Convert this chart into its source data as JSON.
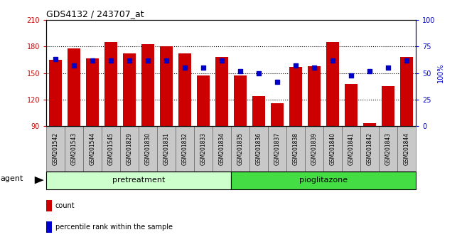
{
  "title": "GDS4132 / 243707_at",
  "samples": [
    "GSM201542",
    "GSM201543",
    "GSM201544",
    "GSM201545",
    "GSM201829",
    "GSM201830",
    "GSM201831",
    "GSM201832",
    "GSM201833",
    "GSM201834",
    "GSM201835",
    "GSM201836",
    "GSM201837",
    "GSM201838",
    "GSM201839",
    "GSM201840",
    "GSM201841",
    "GSM201842",
    "GSM201843",
    "GSM201844"
  ],
  "counts": [
    165,
    178,
    167,
    185,
    172,
    183,
    180,
    172,
    147,
    168,
    147,
    124,
    116,
    157,
    158,
    185,
    138,
    93,
    135,
    168
  ],
  "percentile_ranks": [
    63,
    57,
    62,
    62,
    62,
    62,
    62,
    55,
    55,
    62,
    52,
    50,
    42,
    57,
    55,
    62,
    48,
    52,
    55,
    62
  ],
  "groups": [
    {
      "name": "pretreatment",
      "start": 0,
      "end": 9,
      "color": "#CCFFCC"
    },
    {
      "name": "pioglitazone",
      "start": 10,
      "end": 19,
      "color": "#44DD44"
    }
  ],
  "ylim_left": [
    90,
    210
  ],
  "ylim_right": [
    0,
    100
  ],
  "yticks_left": [
    90,
    120,
    150,
    180,
    210
  ],
  "yticks_right": [
    0,
    25,
    50,
    75,
    100
  ],
  "bar_color": "#CC0000",
  "dot_color": "#0000CC",
  "cell_bg": "#C8C8C8",
  "cell_edge": "#888888",
  "plot_bg": "#FFFFFF",
  "agent_label": "agent",
  "right_ylabel": "100%"
}
